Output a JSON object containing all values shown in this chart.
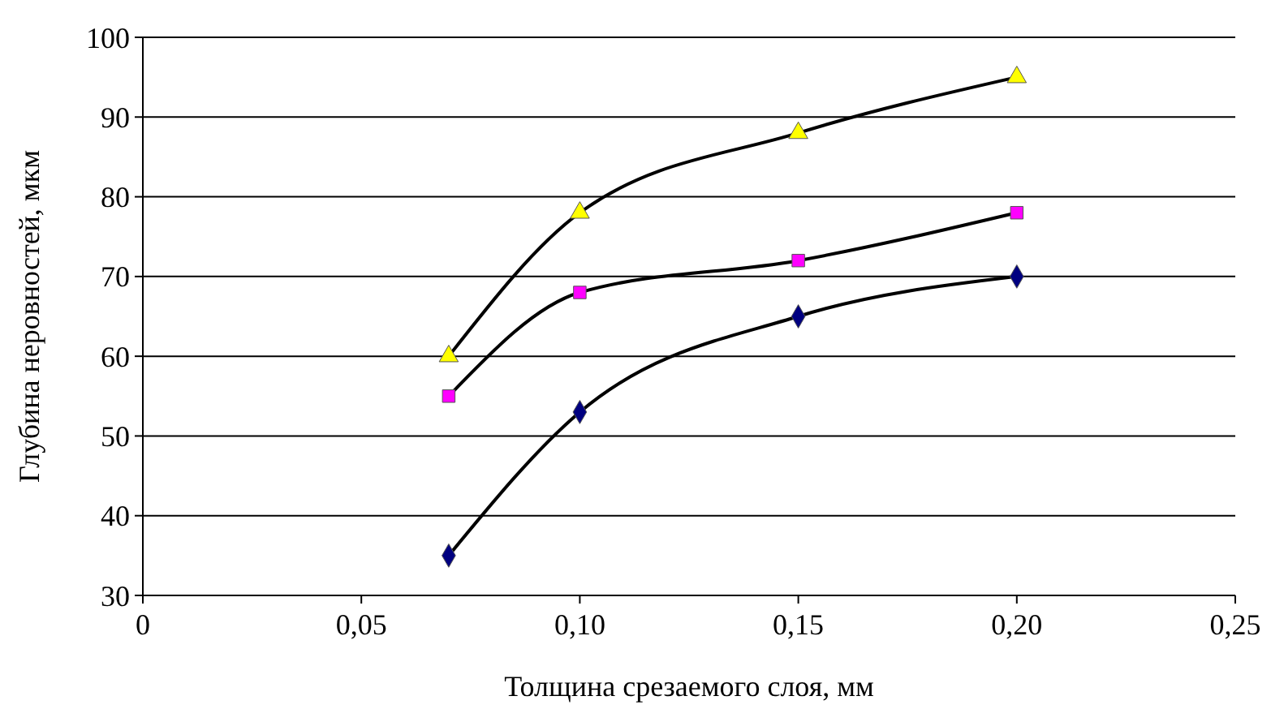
{
  "chart_data": {
    "type": "scatter",
    "xlabel": "Толщина срезаемого слоя, мм",
    "ylabel": "Глубина неровностей, мкм",
    "xlim": [
      0,
      0.25
    ],
    "xticks": [
      {
        "value": 0,
        "label": "0"
      },
      {
        "value": 0.05,
        "label": "0,05"
      },
      {
        "value": 0.1,
        "label": "0,10"
      },
      {
        "value": 0.15,
        "label": "0,15"
      },
      {
        "value": 0.2,
        "label": "0,20"
      },
      {
        "value": 0.25,
        "label": "0,25"
      }
    ],
    "ylim": [
      30,
      100
    ],
    "yticks": [
      30,
      40,
      50,
      60,
      70,
      80,
      90,
      100
    ],
    "grid": "y",
    "series": [
      {
        "type": "line",
        "color": "#000000",
        "marker": "none",
        "x": [
          0.07,
          0.1,
          0.15,
          0.2
        ],
        "values": [
          60,
          78,
          88,
          95
        ]
      },
      {
        "type": "line",
        "color": "#000000",
        "marker": "none",
        "x": [
          0.07,
          0.1,
          0.15,
          0.2
        ],
        "values": [
          55,
          68,
          72,
          78
        ]
      },
      {
        "type": "line",
        "color": "#000000",
        "marker": "none",
        "x": [
          0.07,
          0.1,
          0.15,
          0.2
        ],
        "values": [
          35,
          53,
          65,
          70
        ]
      },
      {
        "color": "#ffff00",
        "marker": "triangle",
        "x": [
          0.07,
          0.1,
          0.15,
          0.2
        ],
        "values": [
          60,
          78,
          88,
          95
        ]
      },
      {
        "color": "#ff00ff",
        "marker": "square",
        "x": [
          0.07,
          0.1,
          0.15,
          0.2
        ],
        "values": [
          55,
          68,
          72,
          78
        ]
      },
      {
        "color": "#000080",
        "marker": "diamond",
        "x": [
          0.07,
          0.1,
          0.15,
          0.2
        ],
        "values": [
          35,
          53,
          65,
          70
        ]
      }
    ]
  }
}
